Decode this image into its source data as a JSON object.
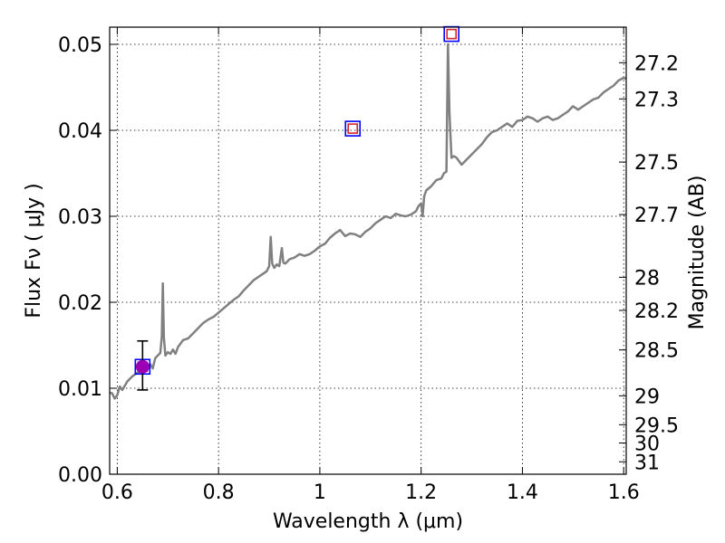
{
  "chart_data": {
    "type": "line",
    "xlabel": "Wavelength  λ (μm)",
    "ylabel": "Flux  Fν  ( μJy )",
    "ylabel_right": "Magnitude (AB)",
    "xlim": [
      0.585,
      1.605
    ],
    "ylim": [
      0.0,
      0.052
    ],
    "grid": true,
    "x_ticks": [
      {
        "value": 0.6,
        "label": "0.6"
      },
      {
        "value": 0.8,
        "label": "0.8"
      },
      {
        "value": 1.0,
        "label": "1"
      },
      {
        "value": 1.2,
        "label": "1.2"
      },
      {
        "value": 1.4,
        "label": "1.4"
      },
      {
        "value": 1.6,
        "label": "1.6"
      }
    ],
    "y_ticks": [
      {
        "value": 0.0,
        "label": "0.00"
      },
      {
        "value": 0.01,
        "label": "0.01"
      },
      {
        "value": 0.02,
        "label": "0.02"
      },
      {
        "value": 0.03,
        "label": "0.03"
      },
      {
        "value": 0.04,
        "label": "0.04"
      },
      {
        "value": 0.05,
        "label": "0.05"
      }
    ],
    "magnitude_ticks": [
      {
        "value": 27.2,
        "label": "27.2"
      },
      {
        "value": 27.3,
        "label": "27.3"
      },
      {
        "value": 27.5,
        "label": "27.5"
      },
      {
        "value": 27.7,
        "label": "27.7"
      },
      {
        "value": 28.0,
        "label": "28"
      },
      {
        "value": 28.2,
        "label": "28.2"
      },
      {
        "value": 28.5,
        "label": "28.5"
      },
      {
        "value": 29.0,
        "label": "29"
      },
      {
        "value": 29.5,
        "label": "29.5"
      },
      {
        "value": 30.0,
        "label": "30"
      },
      {
        "value": 31.0,
        "label": "31"
      }
    ],
    "series": [
      {
        "style": "line",
        "color": "#808080",
        "x": [
          0.585,
          0.59,
          0.595,
          0.6,
          0.605,
          0.61,
          0.62,
          0.63,
          0.64,
          0.65,
          0.66,
          0.665,
          0.67,
          0.675,
          0.68,
          0.685,
          0.688,
          0.69,
          0.692,
          0.695,
          0.7,
          0.705,
          0.71,
          0.715,
          0.72,
          0.73,
          0.74,
          0.75,
          0.76,
          0.77,
          0.78,
          0.79,
          0.8,
          0.81,
          0.82,
          0.83,
          0.84,
          0.85,
          0.86,
          0.87,
          0.88,
          0.89,
          0.895,
          0.9,
          0.903,
          0.906,
          0.91,
          0.915,
          0.92,
          0.925,
          0.928,
          0.932,
          0.94,
          0.95,
          0.96,
          0.97,
          0.98,
          0.99,
          1.0,
          1.01,
          1.02,
          1.03,
          1.04,
          1.05,
          1.06,
          1.07,
          1.08,
          1.09,
          1.1,
          1.11,
          1.12,
          1.13,
          1.14,
          1.15,
          1.16,
          1.17,
          1.18,
          1.19,
          1.195,
          1.2,
          1.203,
          1.206,
          1.21,
          1.22,
          1.23,
          1.24,
          1.245,
          1.25,
          1.253,
          1.256,
          1.26,
          1.265,
          1.27,
          1.28,
          1.29,
          1.3,
          1.31,
          1.32,
          1.33,
          1.34,
          1.35,
          1.36,
          1.37,
          1.38,
          1.39,
          1.4,
          1.41,
          1.42,
          1.43,
          1.44,
          1.45,
          1.46,
          1.47,
          1.48,
          1.49,
          1.5,
          1.51,
          1.52,
          1.53,
          1.54,
          1.55,
          1.56,
          1.57,
          1.58,
          1.59,
          1.6,
          1.605
        ],
        "y": [
          0.0095,
          0.0094,
          0.0088,
          0.0092,
          0.0102,
          0.0098,
          0.0108,
          0.0114,
          0.0118,
          0.0121,
          0.0125,
          0.0128,
          0.0123,
          0.0135,
          0.0138,
          0.0141,
          0.016,
          0.0222,
          0.016,
          0.0138,
          0.0142,
          0.014,
          0.0145,
          0.014,
          0.0148,
          0.0156,
          0.0158,
          0.0164,
          0.017,
          0.0176,
          0.018,
          0.0183,
          0.0188,
          0.0193,
          0.0198,
          0.0203,
          0.0207,
          0.0214,
          0.022,
          0.0226,
          0.023,
          0.0234,
          0.0236,
          0.0242,
          0.0276,
          0.0245,
          0.024,
          0.0244,
          0.0242,
          0.0263,
          0.0246,
          0.0245,
          0.025,
          0.0252,
          0.0256,
          0.0254,
          0.0256,
          0.026,
          0.0265,
          0.0268,
          0.0275,
          0.028,
          0.0284,
          0.0277,
          0.028,
          0.0279,
          0.0276,
          0.0282,
          0.0286,
          0.0292,
          0.0296,
          0.03,
          0.0298,
          0.0303,
          0.0301,
          0.03,
          0.0302,
          0.0306,
          0.0312,
          0.0315,
          0.03,
          0.0323,
          0.033,
          0.0335,
          0.0342,
          0.0344,
          0.035,
          0.0352,
          0.05,
          0.042,
          0.0368,
          0.037,
          0.0368,
          0.036,
          0.0366,
          0.0372,
          0.0378,
          0.0384,
          0.0392,
          0.0398,
          0.04,
          0.0404,
          0.0408,
          0.0404,
          0.0411,
          0.0412,
          0.0416,
          0.0414,
          0.041,
          0.0414,
          0.0416,
          0.0412,
          0.0414,
          0.0418,
          0.0422,
          0.0428,
          0.0424,
          0.0428,
          0.0432,
          0.0436,
          0.0438,
          0.0444,
          0.0448,
          0.0452,
          0.0458,
          0.0461,
          0.046
        ]
      },
      {
        "style": "boxes",
        "color": "#0000ff",
        "points": [
          {
            "x": 0.65,
            "y": 0.0125
          },
          {
            "x": 1.065,
            "y": 0.0402
          },
          {
            "x": 1.26,
            "y": 0.0512
          }
        ]
      },
      {
        "style": "boxes",
        "color": "#d62728",
        "points": [
          {
            "x": 0.65,
            "y": 0.0125
          },
          {
            "x": 1.065,
            "y": 0.0402
          },
          {
            "x": 1.26,
            "y": 0.0512
          }
        ]
      },
      {
        "style": "points",
        "color": "#9b00b4",
        "points": [
          {
            "x": 0.65,
            "y": 0.0125,
            "yerr_low": 0.0098,
            "yerr_high": 0.0155
          }
        ]
      }
    ]
  }
}
